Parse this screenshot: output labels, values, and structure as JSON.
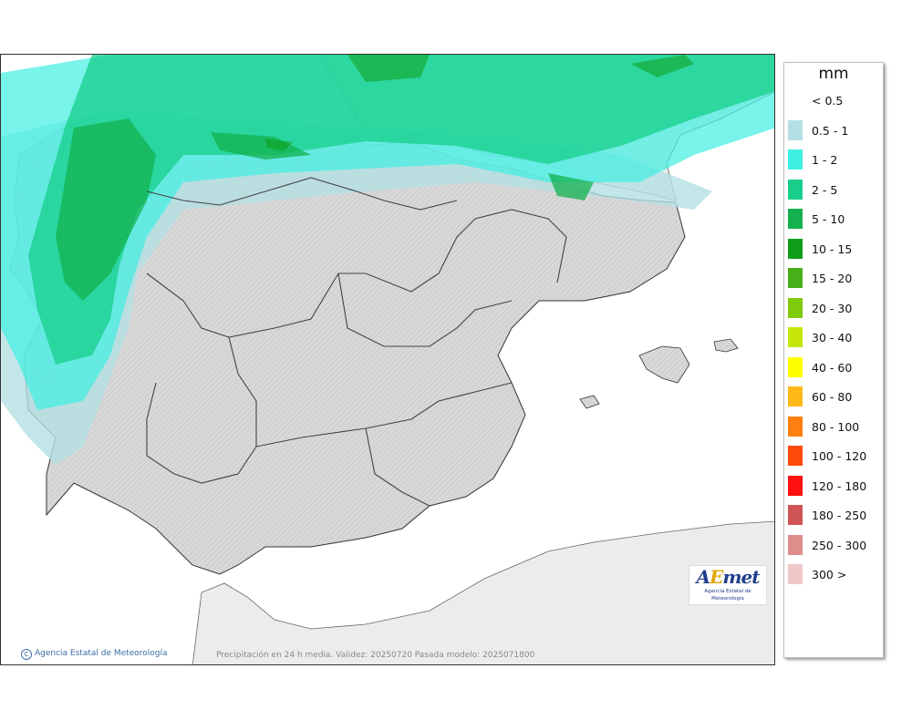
{
  "legend": {
    "unit": "mm",
    "items": [
      {
        "label": "< 0.5",
        "color": ""
      },
      {
        "label": "0.5 - 1",
        "color": "#b4e0e4"
      },
      {
        "label": "1 - 2",
        "color": "#3fefe1"
      },
      {
        "label": "2 - 5",
        "color": "#17cf8a"
      },
      {
        "label": "5 - 10",
        "color": "#13b14e"
      },
      {
        "label": "10 - 15",
        "color": "#0f9e1a"
      },
      {
        "label": "15 - 20",
        "color": "#47b01a"
      },
      {
        "label": "20 - 30",
        "color": "#7fcb0c"
      },
      {
        "label": "30 - 40",
        "color": "#c6e60a"
      },
      {
        "label": "40 - 60",
        "color": "#ffff00"
      },
      {
        "label": "60 - 80",
        "color": "#ffba1a"
      },
      {
        "label": "80 - 100",
        "color": "#ff8010"
      },
      {
        "label": "100 - 120",
        "color": "#ff4a0a"
      },
      {
        "label": "120 - 180",
        "color": "#ff0f0f"
      },
      {
        "label": "180 - 250",
        "color": "#cf5555"
      },
      {
        "label": "250 - 300",
        "color": "#de8c8c"
      },
      {
        "label": "300 >",
        "color": "#efc8c8"
      }
    ]
  },
  "footer": {
    "copyright": "Agencia Estatal de Meteorología",
    "caption": "Precipitación en 24 h media. Validez: 20250720 Pasada modelo: 2025071800"
  },
  "logo": {
    "word_start": "A",
    "word_e": "E",
    "word_end": "met",
    "subtitle": "Agencia Estatal de Meteorología"
  },
  "colors": {
    "land": "#d9d9d9",
    "sea": "#ffffff",
    "outside_land": "#ececec",
    "border": "#333333"
  }
}
